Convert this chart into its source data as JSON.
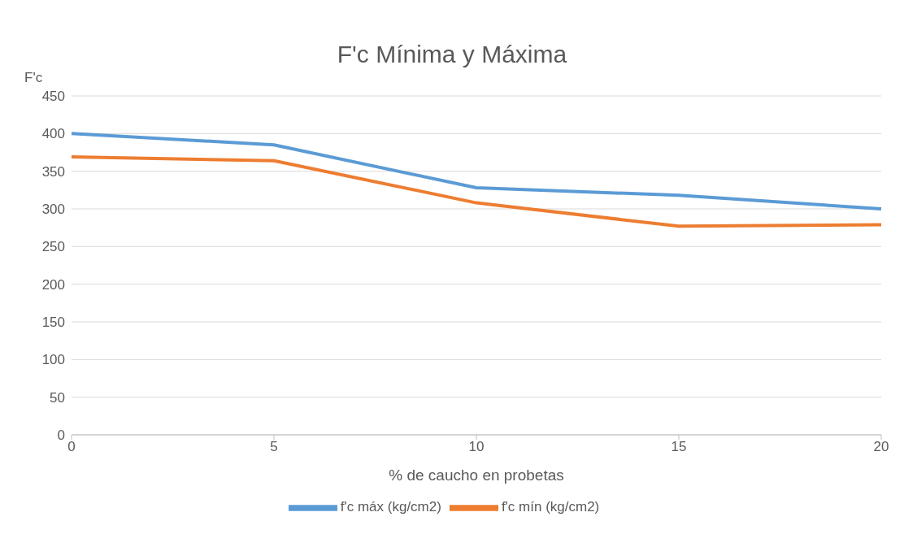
{
  "chart_data": {
    "type": "line",
    "title": "F'c Mínima y Máxima",
    "xlabel": "% de caucho en probetas",
    "ylabel": "F'c",
    "categories": [
      "0",
      "5",
      "10",
      "15",
      "20"
    ],
    "series": [
      {
        "name": "f'c máx (kg/cm2)",
        "color": "#5b9bd5",
        "values": [
          400,
          385,
          328,
          318,
          300
        ]
      },
      {
        "name": "f'c mín (kg/cm2)",
        "color": "#ed7d31",
        "values": [
          369,
          364,
          308,
          277,
          279
        ]
      }
    ],
    "ylim": [
      0,
      450
    ],
    "yticks": [
      0,
      50,
      100,
      150,
      200,
      250,
      300,
      350,
      400,
      450
    ],
    "grid": "y",
    "legend": "bottom",
    "marker": "none",
    "line_style": "solid"
  }
}
